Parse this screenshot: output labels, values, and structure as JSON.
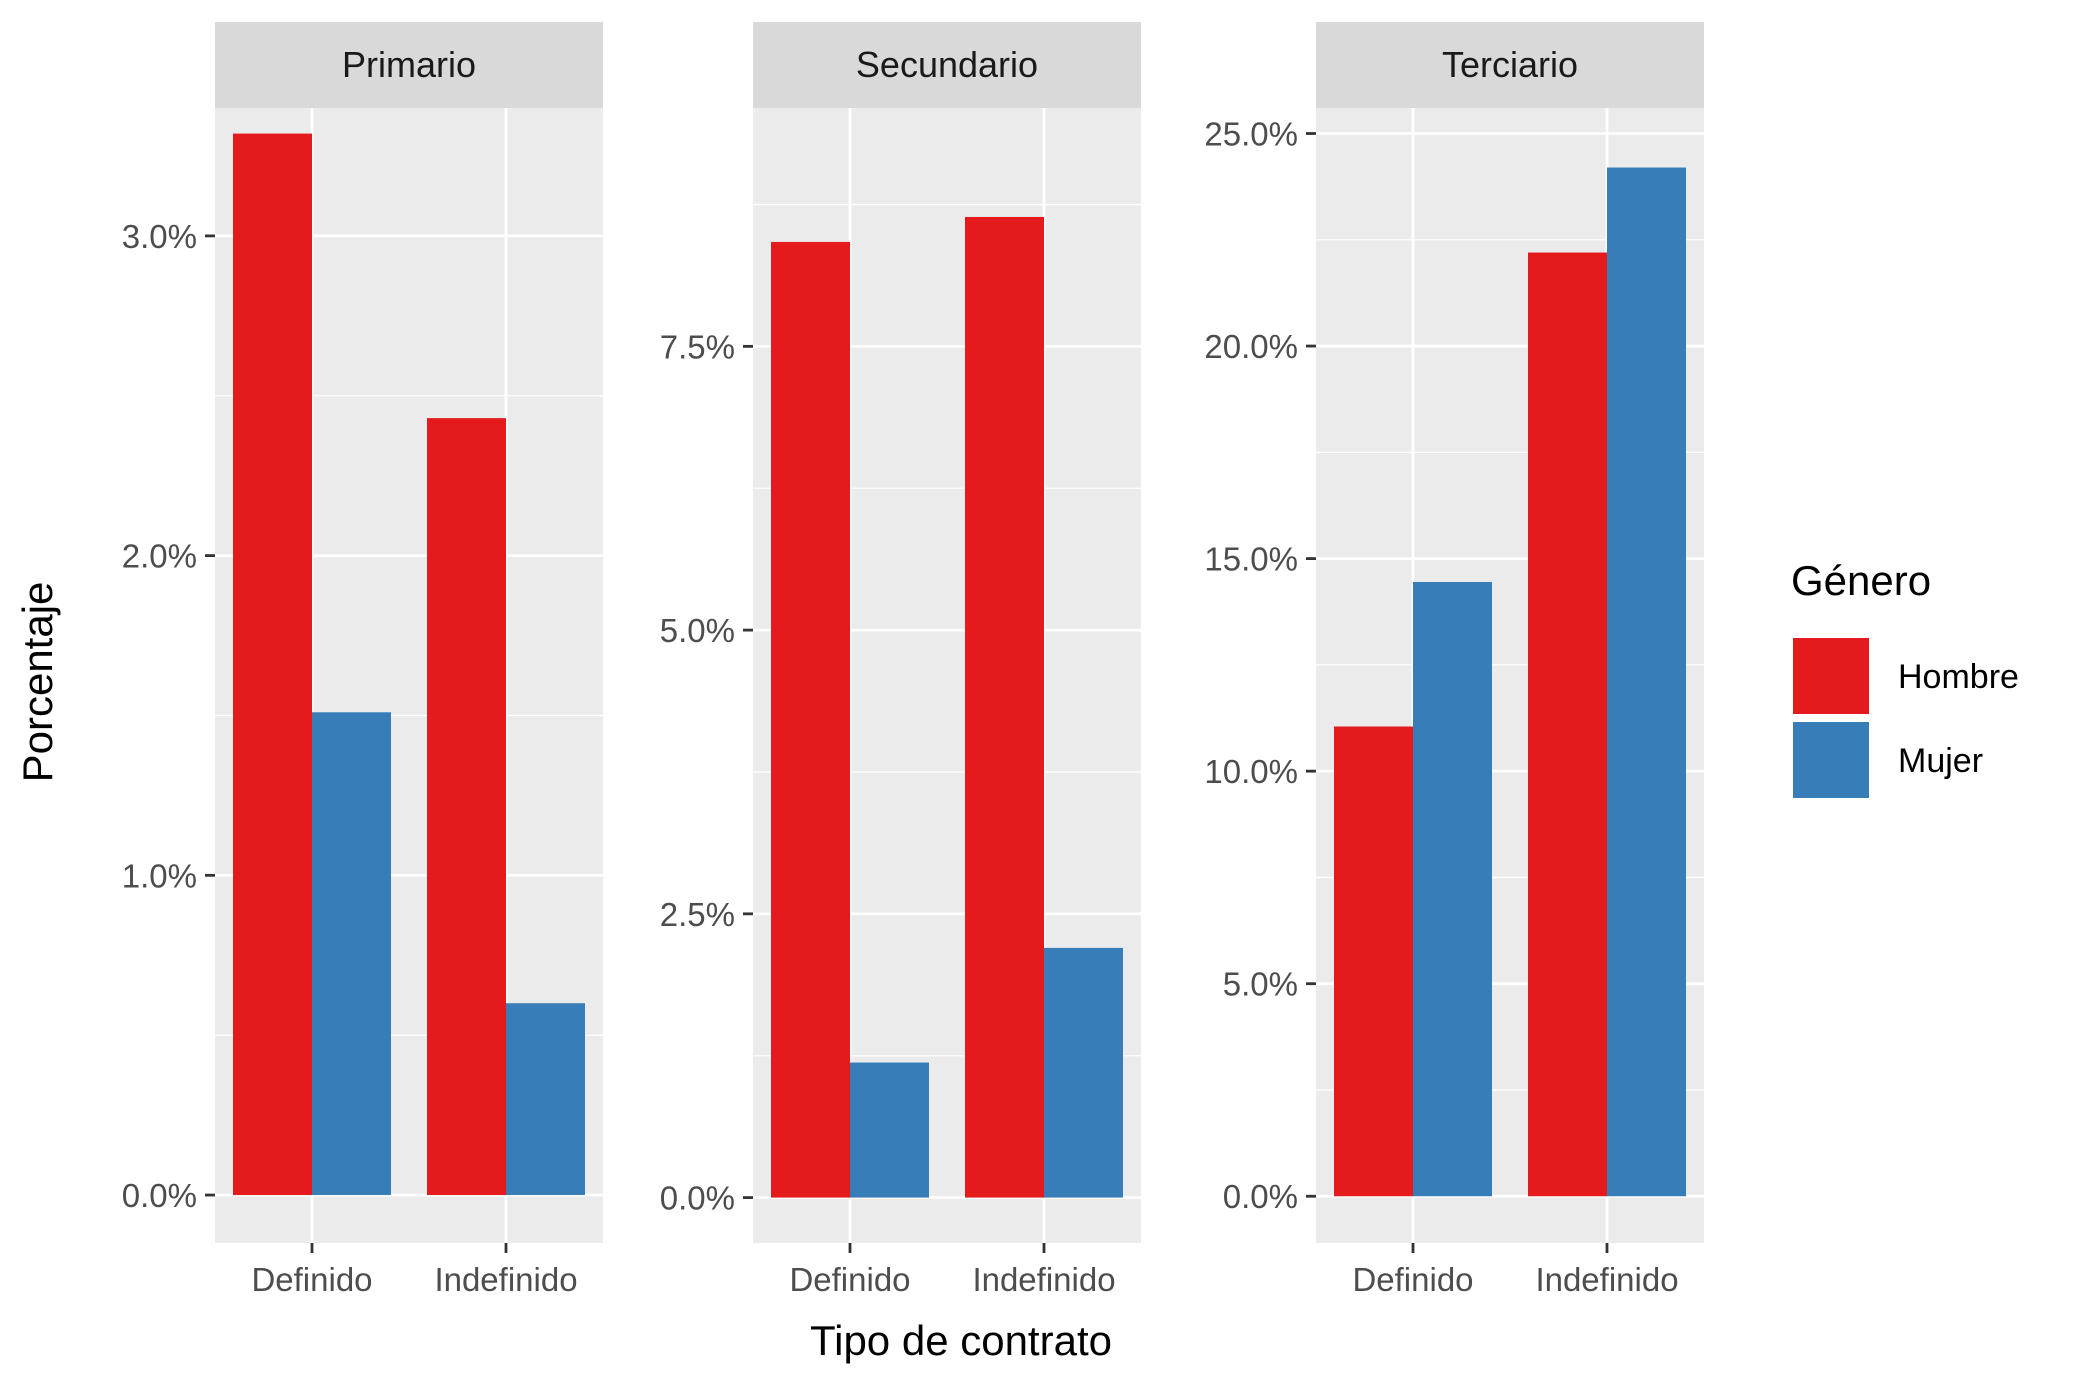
{
  "chart_data": {
    "type": "bar",
    "xlabel": "Tipo de contrato",
    "ylabel": "Porcentaje",
    "legend": {
      "title": "Género",
      "position": "right",
      "entries": [
        {
          "name": "Hombre",
          "color": "#E41A1C"
        },
        {
          "name": "Mujer",
          "color": "#377EB8"
        }
      ]
    },
    "categories": [
      "Definido",
      "Indefinido"
    ],
    "grid": true,
    "facets": [
      {
        "title": "Primario",
        "ylim": [
          -0.15,
          3.4
        ],
        "yticks": [
          0,
          1,
          2,
          3
        ],
        "ytick_labels": [
          "0.0%",
          "1.0%",
          "2.0%",
          "3.0%"
        ],
        "series": [
          {
            "name": "Hombre",
            "values": [
              3.32,
              2.43
            ]
          },
          {
            "name": "Mujer",
            "values": [
              1.51,
              0.6
            ]
          }
        ]
      },
      {
        "title": "Secundario",
        "ylim": [
          -0.4,
          9.6
        ],
        "yticks": [
          0,
          2.5,
          5,
          7.5
        ],
        "ytick_labels": [
          "0.0%",
          "2.5%",
          "5.0%",
          "7.5%"
        ],
        "series": [
          {
            "name": "Hombre",
            "values": [
              8.42,
              8.64
            ]
          },
          {
            "name": "Mujer",
            "values": [
              1.19,
              2.2
            ]
          }
        ]
      },
      {
        "title": "Terciario",
        "ylim": [
          -1.1,
          25.6
        ],
        "yticks": [
          0,
          5,
          10,
          15,
          20,
          25
        ],
        "ytick_labels": [
          "0.0%",
          "5.0%",
          "10.0%",
          "15.0%",
          "20.0%",
          "25.0%"
        ],
        "series": [
          {
            "name": "Hombre",
            "values": [
              11.05,
              22.2
            ]
          },
          {
            "name": "Mujer",
            "values": [
              14.45,
              24.2
            ]
          }
        ]
      }
    ]
  }
}
